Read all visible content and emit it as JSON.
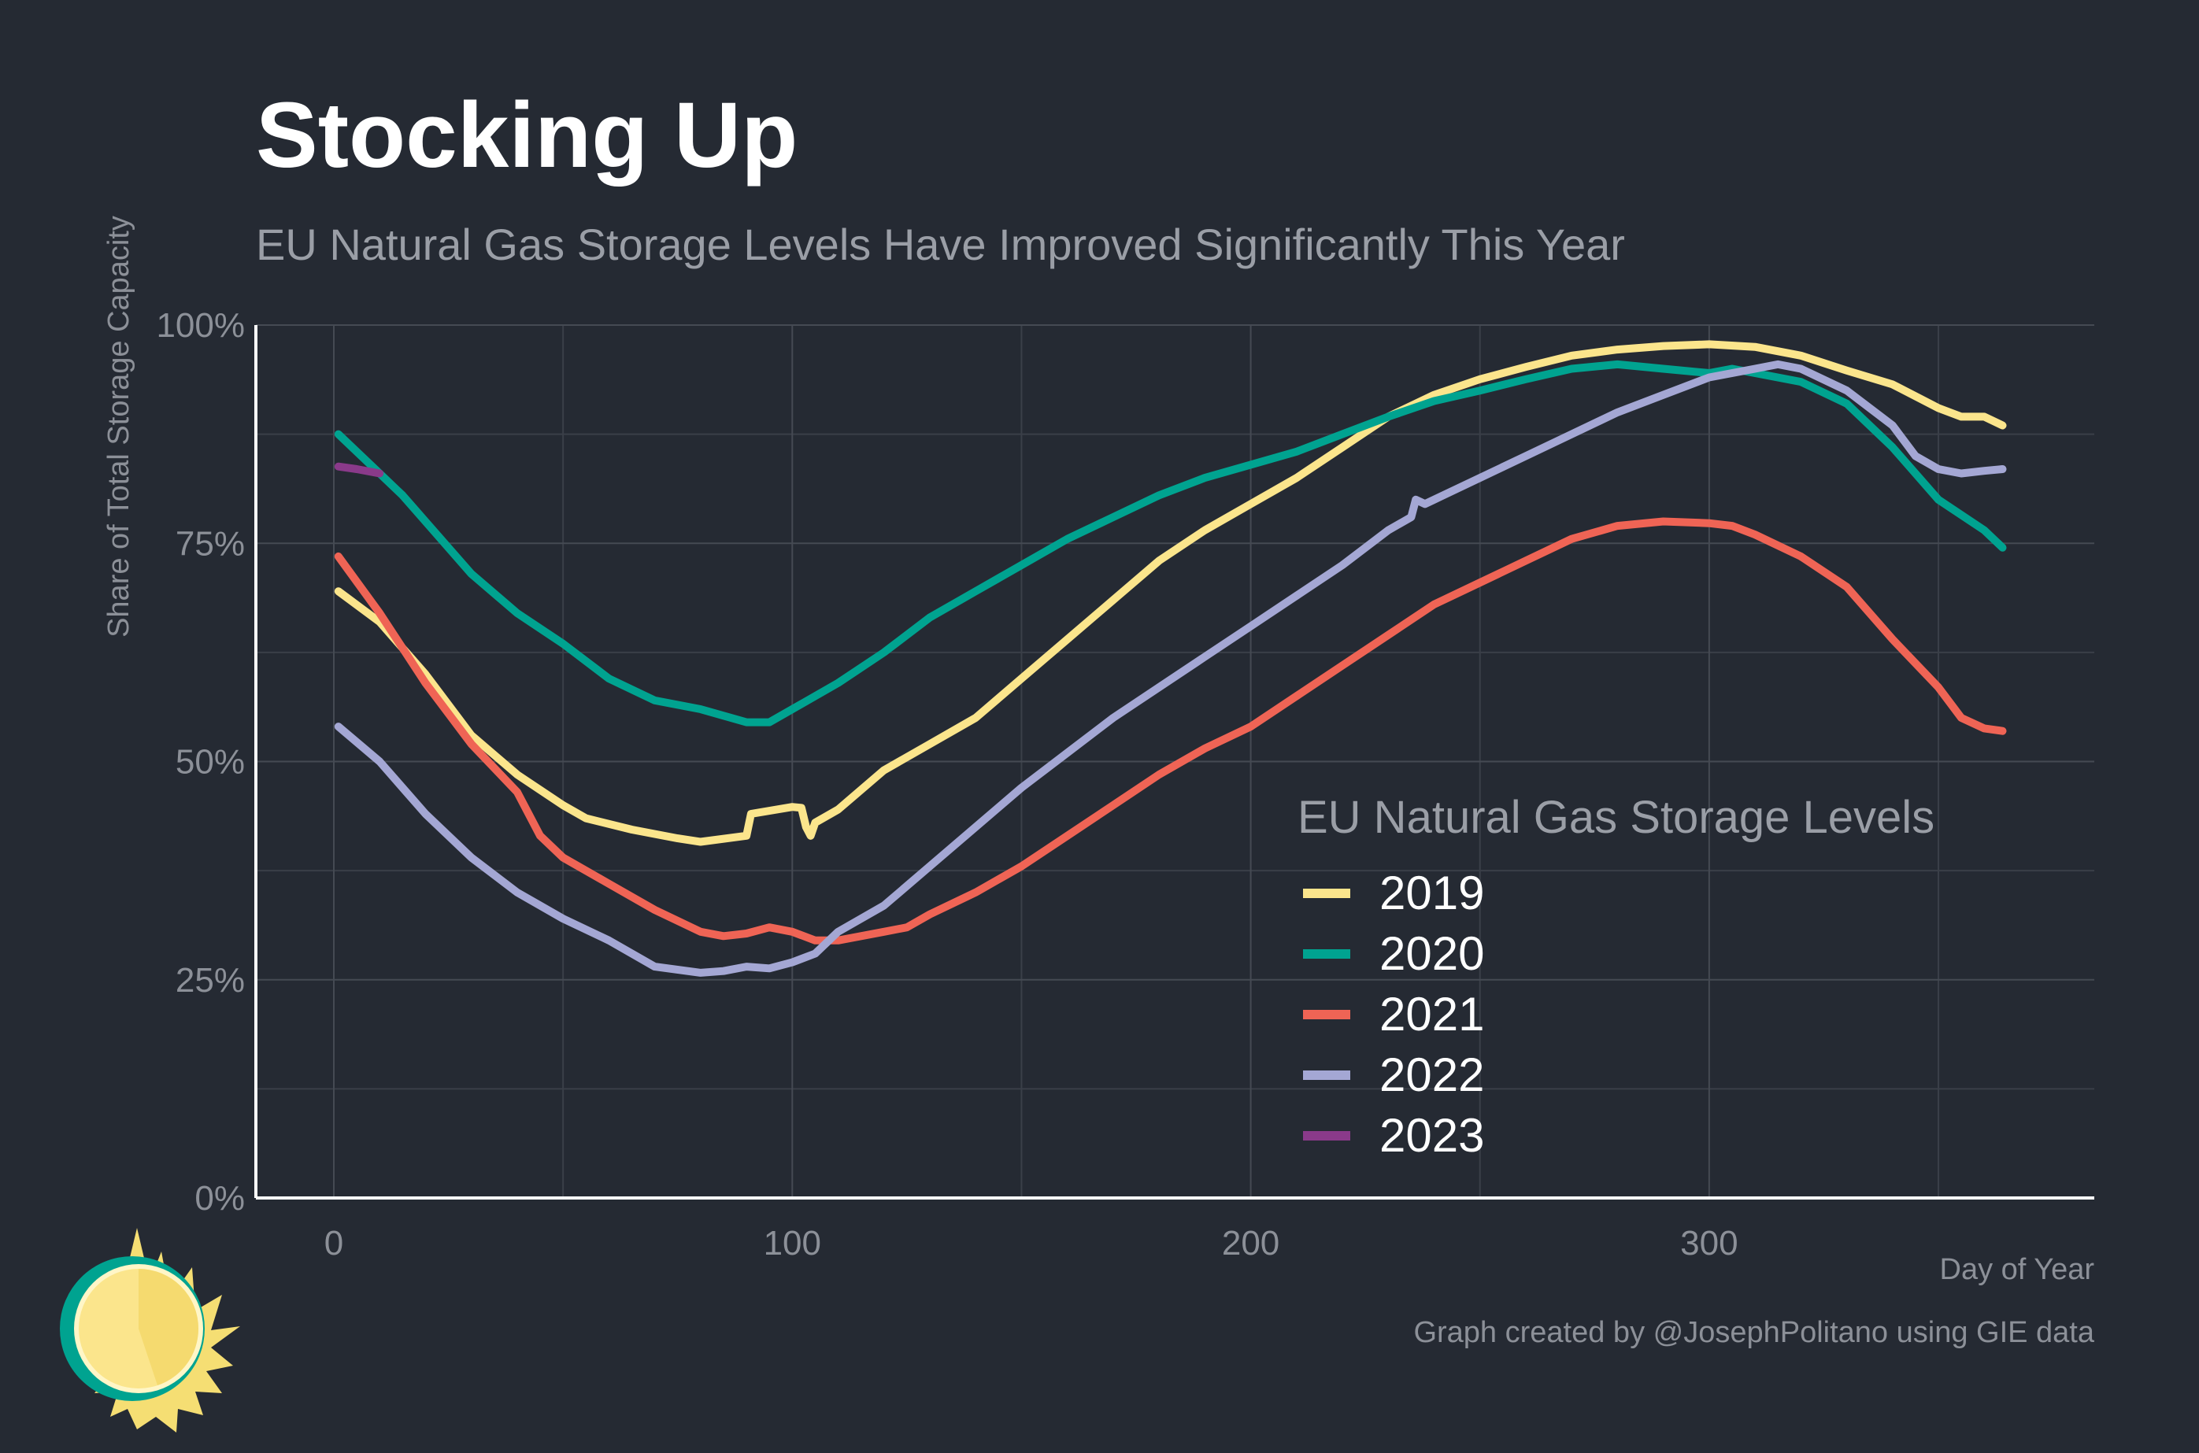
{
  "chart_data": {
    "type": "line",
    "title": "Stocking Up",
    "subtitle": "EU Natural Gas Storage Levels Have Improved Significantly This Year",
    "xlabel": "Day of Year",
    "ylabel": "Share of Total Storage Capacity",
    "xlim": [
      -17,
      384
    ],
    "ylim": [
      0,
      100
    ],
    "x_ticks": [
      0,
      100,
      200,
      300
    ],
    "x_tick_labels": [
      "0",
      "100",
      "200",
      "300"
    ],
    "y_ticks": [
      0,
      25,
      50,
      75,
      100
    ],
    "y_tick_labels": [
      "0%",
      "25%",
      "50%",
      "75%",
      "100%"
    ],
    "grid": true,
    "legend": {
      "title": "EU Natural Gas Storage Levels",
      "position": "bottom-right-inside"
    },
    "caption": "Graph created by @JosephPolitano using GIE data",
    "series": [
      {
        "name": "2019",
        "color": "#fbe58c",
        "points": [
          [
            1,
            69.5
          ],
          [
            10,
            66
          ],
          [
            20,
            60
          ],
          [
            30,
            53
          ],
          [
            40,
            48.5
          ],
          [
            50,
            45
          ],
          [
            55,
            43.5
          ],
          [
            65,
            42.2
          ],
          [
            75,
            41.2
          ],
          [
            80,
            40.8
          ],
          [
            90,
            41.5
          ],
          [
            91,
            44
          ],
          [
            100,
            44.8
          ],
          [
            102,
            44.7
          ],
          [
            103,
            42.5
          ],
          [
            104,
            41.5
          ],
          [
            105,
            43
          ],
          [
            110,
            44.5
          ],
          [
            120,
            49
          ],
          [
            130,
            52
          ],
          [
            140,
            55
          ],
          [
            150,
            59.5
          ],
          [
            160,
            64
          ],
          [
            170,
            68.5
          ],
          [
            180,
            73
          ],
          [
            190,
            76.5
          ],
          [
            200,
            79.5
          ],
          [
            210,
            82.5
          ],
          [
            220,
            86
          ],
          [
            230,
            89.5
          ],
          [
            240,
            92
          ],
          [
            250,
            93.8
          ],
          [
            260,
            95.2
          ],
          [
            270,
            96.5
          ],
          [
            280,
            97.2
          ],
          [
            290,
            97.6
          ],
          [
            300,
            97.8
          ],
          [
            310,
            97.5
          ],
          [
            320,
            96.5
          ],
          [
            330,
            94.8
          ],
          [
            340,
            93.2
          ],
          [
            350,
            90.5
          ],
          [
            355,
            89.5
          ],
          [
            360,
            89.5
          ],
          [
            364,
            88.5
          ]
        ]
      },
      {
        "name": "2020",
        "color": "#00a390",
        "points": [
          [
            1,
            87.5
          ],
          [
            10,
            83
          ],
          [
            15,
            80.5
          ],
          [
            20,
            77.5
          ],
          [
            30,
            71.5
          ],
          [
            40,
            67
          ],
          [
            50,
            63.5
          ],
          [
            60,
            59.5
          ],
          [
            70,
            57
          ],
          [
            80,
            56
          ],
          [
            90,
            54.5
          ],
          [
            95,
            54.5
          ],
          [
            100,
            56
          ],
          [
            110,
            59
          ],
          [
            120,
            62.5
          ],
          [
            130,
            66.5
          ],
          [
            140,
            69.5
          ],
          [
            150,
            72.5
          ],
          [
            160,
            75.5
          ],
          [
            170,
            78
          ],
          [
            180,
            80.5
          ],
          [
            190,
            82.5
          ],
          [
            200,
            84
          ],
          [
            210,
            85.5
          ],
          [
            220,
            87.5
          ],
          [
            230,
            89.5
          ],
          [
            240,
            91.3
          ],
          [
            250,
            92.5
          ],
          [
            260,
            93.8
          ],
          [
            270,
            95
          ],
          [
            280,
            95.5
          ],
          [
            290,
            95
          ],
          [
            300,
            94.5
          ],
          [
            305,
            95
          ],
          [
            310,
            94.5
          ],
          [
            320,
            93.5
          ],
          [
            330,
            91
          ],
          [
            340,
            86
          ],
          [
            350,
            80
          ],
          [
            360,
            76.5
          ],
          [
            364,
            74.5
          ]
        ]
      },
      {
        "name": "2021",
        "color": "#ef6455",
        "points": [
          [
            1,
            73.5
          ],
          [
            10,
            67
          ],
          [
            20,
            59
          ],
          [
            30,
            52
          ],
          [
            40,
            46.5
          ],
          [
            45,
            41.5
          ],
          [
            50,
            39
          ],
          [
            60,
            36
          ],
          [
            70,
            33
          ],
          [
            80,
            30.5
          ],
          [
            85,
            30
          ],
          [
            90,
            30.3
          ],
          [
            95,
            31
          ],
          [
            100,
            30.5
          ],
          [
            105,
            29.5
          ],
          [
            110,
            29.5
          ],
          [
            120,
            30.5
          ],
          [
            125,
            31
          ],
          [
            130,
            32.5
          ],
          [
            140,
            35
          ],
          [
            150,
            38
          ],
          [
            160,
            41.5
          ],
          [
            170,
            45
          ],
          [
            180,
            48.5
          ],
          [
            190,
            51.5
          ],
          [
            200,
            54
          ],
          [
            210,
            57.5
          ],
          [
            220,
            61
          ],
          [
            230,
            64.5
          ],
          [
            240,
            68
          ],
          [
            250,
            70.5
          ],
          [
            260,
            73
          ],
          [
            270,
            75.5
          ],
          [
            280,
            77
          ],
          [
            290,
            77.5
          ],
          [
            300,
            77.3
          ],
          [
            305,
            77
          ],
          [
            310,
            76
          ],
          [
            320,
            73.5
          ],
          [
            330,
            70
          ],
          [
            340,
            64
          ],
          [
            350,
            58.5
          ],
          [
            355,
            55
          ],
          [
            360,
            53.8
          ],
          [
            364,
            53.5
          ]
        ]
      },
      {
        "name": "2022",
        "color": "#a4a7d4",
        "points": [
          [
            1,
            54
          ],
          [
            10,
            50
          ],
          [
            20,
            44
          ],
          [
            30,
            39
          ],
          [
            40,
            35
          ],
          [
            50,
            32
          ],
          [
            60,
            29.5
          ],
          [
            70,
            26.5
          ],
          [
            80,
            25.8
          ],
          [
            85,
            26
          ],
          [
            90,
            26.5
          ],
          [
            95,
            26.3
          ],
          [
            100,
            27
          ],
          [
            105,
            28
          ],
          [
            110,
            30.5
          ],
          [
            120,
            33.5
          ],
          [
            130,
            38
          ],
          [
            140,
            42.5
          ],
          [
            150,
            47
          ],
          [
            160,
            51
          ],
          [
            170,
            55
          ],
          [
            180,
            58.5
          ],
          [
            190,
            62
          ],
          [
            200,
            65.5
          ],
          [
            210,
            69
          ],
          [
            220,
            72.5
          ],
          [
            230,
            76.5
          ],
          [
            235,
            78
          ],
          [
            236,
            80
          ],
          [
            238,
            79.5
          ],
          [
            240,
            80
          ],
          [
            250,
            82.5
          ],
          [
            260,
            85
          ],
          [
            270,
            87.5
          ],
          [
            280,
            90
          ],
          [
            290,
            92
          ],
          [
            300,
            94
          ],
          [
            310,
            95
          ],
          [
            315,
            95.5
          ],
          [
            320,
            95
          ],
          [
            330,
            92.5
          ],
          [
            340,
            88.5
          ],
          [
            345,
            85
          ],
          [
            350,
            83.5
          ],
          [
            355,
            83
          ],
          [
            360,
            83.3
          ],
          [
            364,
            83.5
          ]
        ]
      },
      {
        "name": "2023",
        "color": "#8a3a8a",
        "points": [
          [
            1,
            83.8
          ],
          [
            5,
            83.5
          ],
          [
            10,
            83
          ]
        ]
      }
    ]
  }
}
